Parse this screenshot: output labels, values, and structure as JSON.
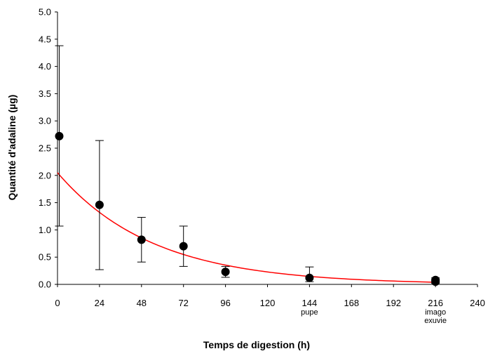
{
  "chart_data": {
    "type": "scatter",
    "title": "",
    "xlabel": "Temps de digestion (h)",
    "ylabel": "Quantité d'adaline (µg)",
    "xlim": [
      0,
      240
    ],
    "ylim": [
      0,
      5.0
    ],
    "xticks": [
      0,
      24,
      48,
      72,
      96,
      120,
      144,
      168,
      192,
      216,
      240
    ],
    "yticks": [
      "0.0",
      "0.5",
      "1.0",
      "1.5",
      "2.0",
      "2.5",
      "3.0",
      "3.5",
      "4.0",
      "4.5",
      "5.0"
    ],
    "grid": false,
    "legend": "none",
    "series": [
      {
        "marker": "filled-circle",
        "color": "#000000",
        "points": [
          {
            "x": 1,
            "y": 2.72,
            "err_low": 1.07,
            "err_high": 4.38
          },
          {
            "x": 24,
            "y": 1.46,
            "err_low": 0.27,
            "err_high": 2.64
          },
          {
            "x": 48,
            "y": 0.82,
            "err_low": 0.41,
            "err_high": 1.23
          },
          {
            "x": 72,
            "y": 0.7,
            "err_low": 0.33,
            "err_high": 1.07
          },
          {
            "x": 96,
            "y": 0.23,
            "err_low": 0.13,
            "err_high": 0.33
          },
          {
            "x": 144,
            "y": 0.12,
            "err_low": 0.05,
            "err_high": 0.32
          },
          {
            "x": 216,
            "y": 0.08,
            "err_low": 0.04,
            "err_high": 0.12
          },
          {
            "x": 216,
            "y": 0.05,
            "err_low": 0.02,
            "err_high": 0.08
          }
        ]
      }
    ],
    "fit_curve": {
      "type": "exponential",
      "color": "#ff0000",
      "a": 2.05,
      "k": 0.0183,
      "x_range": [
        0,
        216
      ]
    },
    "annotations": [
      {
        "text": "pupe",
        "x": 144
      },
      {
        "text": "imago",
        "x": 216
      },
      {
        "text": "exuvie",
        "x": 216
      }
    ]
  }
}
